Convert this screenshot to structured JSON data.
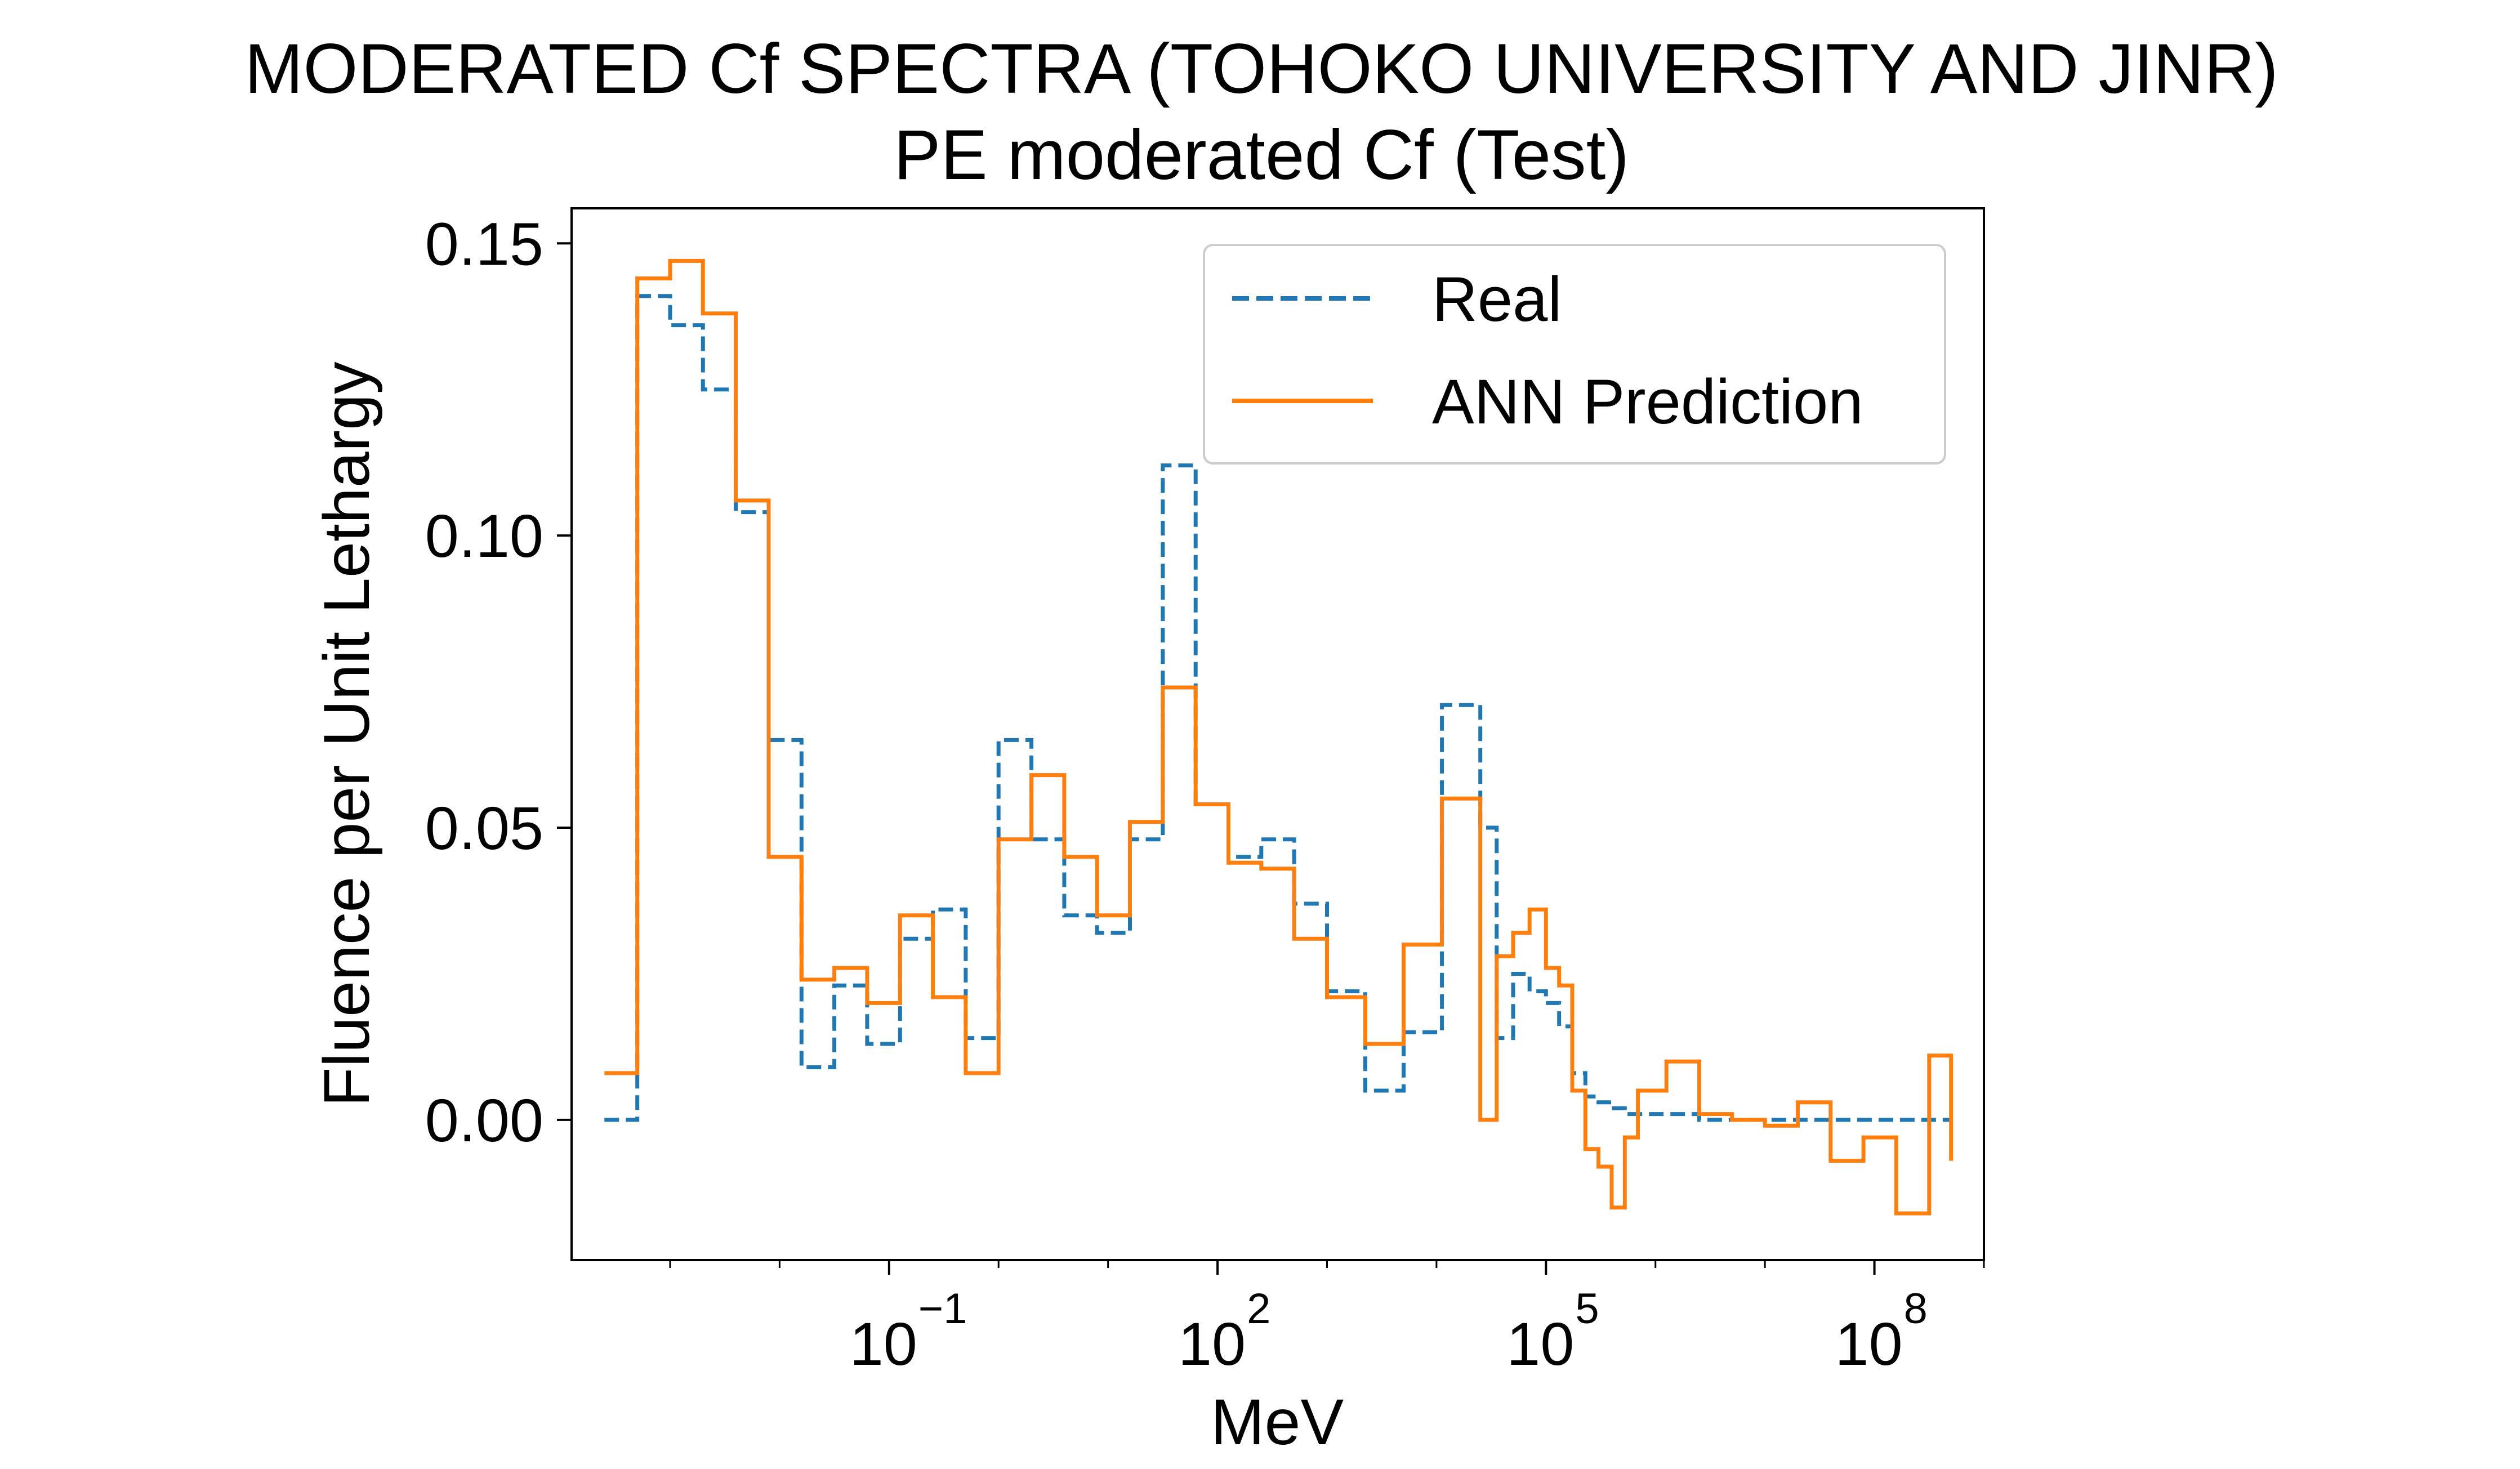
{
  "chart_data": {
    "type": "line",
    "title": "MODERATED Cf SPECTRA (TOHOKO UNIVERSITY AND JINR)",
    "subtitle": "PE moderated Cf (Test)",
    "xlabel": "MeV",
    "ylabel": "Fluence per Unit Lethargy",
    "xscale": "log",
    "xlim_log10": [
      -3.9,
      9.0
    ],
    "ylim": [
      -0.024,
      0.156
    ],
    "x_ticks_log10": [
      -1,
      2,
      5,
      8
    ],
    "x_tick_labels": [
      {
        "base": "10",
        "exp": "−1"
      },
      {
        "base": "10",
        "exp": "2"
      },
      {
        "base": "10",
        "exp": "5"
      },
      {
        "base": "10",
        "exp": "8"
      }
    ],
    "y_ticks": [
      0.0,
      0.05,
      0.1,
      0.15
    ],
    "y_tick_labels": [
      "0.00",
      "0.05",
      "0.10",
      "0.15"
    ],
    "grid": false,
    "legend_position": "top-right",
    "x_log10": [
      -3.6,
      -3.3,
      -3.0,
      -2.7,
      -2.4,
      -2.1,
      -1.8,
      -1.5,
      -1.2,
      -0.9,
      -0.6,
      -0.3,
      0.0,
      0.3,
      0.6,
      0.9,
      1.2,
      1.5,
      1.8,
      2.1,
      2.4,
      2.7,
      3.0,
      3.35,
      3.7,
      4.05,
      4.4,
      4.55,
      4.7,
      4.85,
      5.0,
      5.12,
      5.24,
      5.36,
      5.48,
      5.6,
      5.72,
      5.84,
      6.1,
      6.4,
      6.7,
      7.0,
      7.3,
      7.6,
      7.9,
      8.2,
      8.5,
      8.7
    ],
    "series": [
      {
        "name": "Real",
        "color": "#1f77b4",
        "style": "dashed",
        "values": [
          0.0,
          0.141,
          0.136,
          0.125,
          0.104,
          0.065,
          0.009,
          0.023,
          0.013,
          0.031,
          0.036,
          0.014,
          0.065,
          0.048,
          0.035,
          0.032,
          0.048,
          0.112,
          0.054,
          0.045,
          0.048,
          0.037,
          0.022,
          0.005,
          0.015,
          0.071,
          0.05,
          0.014,
          0.025,
          0.022,
          0.02,
          0.016,
          0.008,
          0.004,
          0.003,
          0.002,
          0.001,
          0.001,
          0.001,
          0.0,
          0.0,
          0.0,
          0.0,
          0.0,
          0.0,
          0.0,
          0.0,
          0.0
        ]
      },
      {
        "name": "ANN Prediction",
        "color": "#ff7f0e",
        "style": "solid",
        "values": [
          0.008,
          0.144,
          0.147,
          0.138,
          0.106,
          0.045,
          0.024,
          0.026,
          0.02,
          0.035,
          0.021,
          0.008,
          0.048,
          0.059,
          0.045,
          0.035,
          0.051,
          0.074,
          0.054,
          0.044,
          0.043,
          0.031,
          0.021,
          0.013,
          0.03,
          0.055,
          0.0,
          0.028,
          0.032,
          0.036,
          0.026,
          0.023,
          0.005,
          -0.005,
          -0.008,
          -0.015,
          -0.003,
          0.005,
          0.01,
          0.001,
          0.0,
          -0.001,
          0.003,
          -0.007,
          -0.003,
          -0.016,
          0.011,
          -0.007
        ]
      }
    ]
  }
}
